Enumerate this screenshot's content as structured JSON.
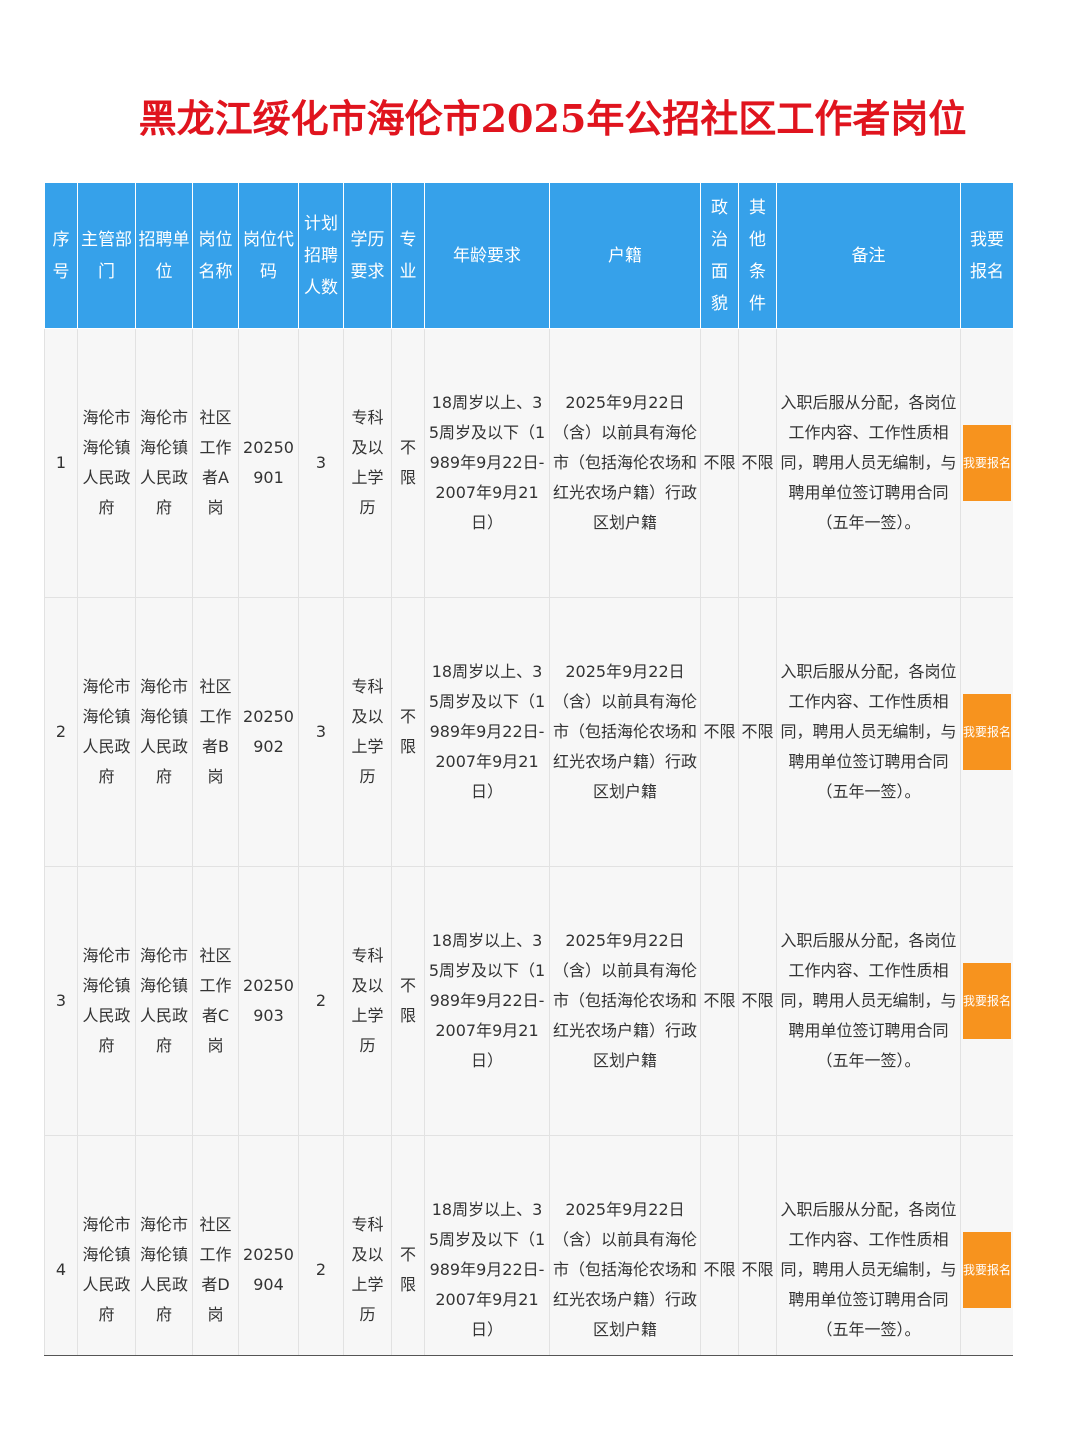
{
  "title": "黑龙江绥化市海伦市2025年公招社区工作者岗位",
  "table": {
    "headers": [
      "序号",
      "主管部门",
      "招聘单位",
      "岗位名称",
      "岗位代码",
      "计划招聘人数",
      "学历要求",
      "专业",
      "年龄要求",
      "户籍",
      "政治面貌",
      "其他条件",
      "备注",
      "我要报名"
    ],
    "rows": [
      [
        1,
        "海伦市海伦镇人民政府",
        "海伦市海伦镇人民政府",
        "社区工作者A岗",
        "20250901",
        3,
        "专科及以上学历",
        "不限",
        "18周岁以上、35周岁及以下（1989年9月22日-2007年9月21日）",
        "2025年9月22日（含）以前具有海伦市（包括海伦农场和红光农场户籍）行政区划户籍",
        "不限",
        "不限",
        "入职后服从分配，各岗位工作内容、工作性质相同，聘用人员无编制，与聘用单位签订聘用合同（五年一签）。",
        "我要报名"
      ],
      [
        2,
        "海伦市海伦镇人民政府",
        "海伦市海伦镇人民政府",
        "社区工作者B岗",
        "20250902",
        3,
        "专科及以上学历",
        "不限",
        "18周岁以上、35周岁及以下（1989年9月22日-2007年9月21日）",
        "2025年9月22日（含）以前具有海伦市（包括海伦农场和红光农场户籍）行政区划户籍",
        "不限",
        "不限",
        "入职后服从分配，各岗位工作内容、工作性质相同，聘用人员无编制，与聘用单位签订聘用合同（五年一签）。",
        "我要报名"
      ],
      [
        3,
        "海伦市海伦镇人民政府",
        "海伦市海伦镇人民政府",
        "社区工作者C岗",
        "20250903",
        2,
        "专科及以上学历",
        "不限",
        "18周岁以上、35周岁及以下（1989年9月22日-2007年9月21日）",
        "2025年9月22日（含）以前具有海伦市（包括海伦农场和红光农场户籍）行政区划户籍",
        "不限",
        "不限",
        "入职后服从分配，各岗位工作内容、工作性质相同，聘用人员无编制，与聘用单位签订聘用合同（五年一签）。",
        "我要报名"
      ],
      [
        4,
        "海伦市海伦镇人民政府",
        "海伦市海伦镇人民政府",
        "社区工作者D岗",
        "20250904",
        2,
        "专科及以上学历",
        "不限",
        "18周岁以上、35周岁及以下（1989年9月22日-2007年9月21日）",
        "2025年9月22日（含）以前具有海伦市（包括海伦农场和红光农场户籍）行政区划户籍",
        "不限",
        "不限",
        "入职后服从分配，各岗位工作内容、工作性质相同，聘用人员无编制，与聘用单位签订聘用合同（五年一签）。",
        "我要报名"
      ]
    ]
  }
}
